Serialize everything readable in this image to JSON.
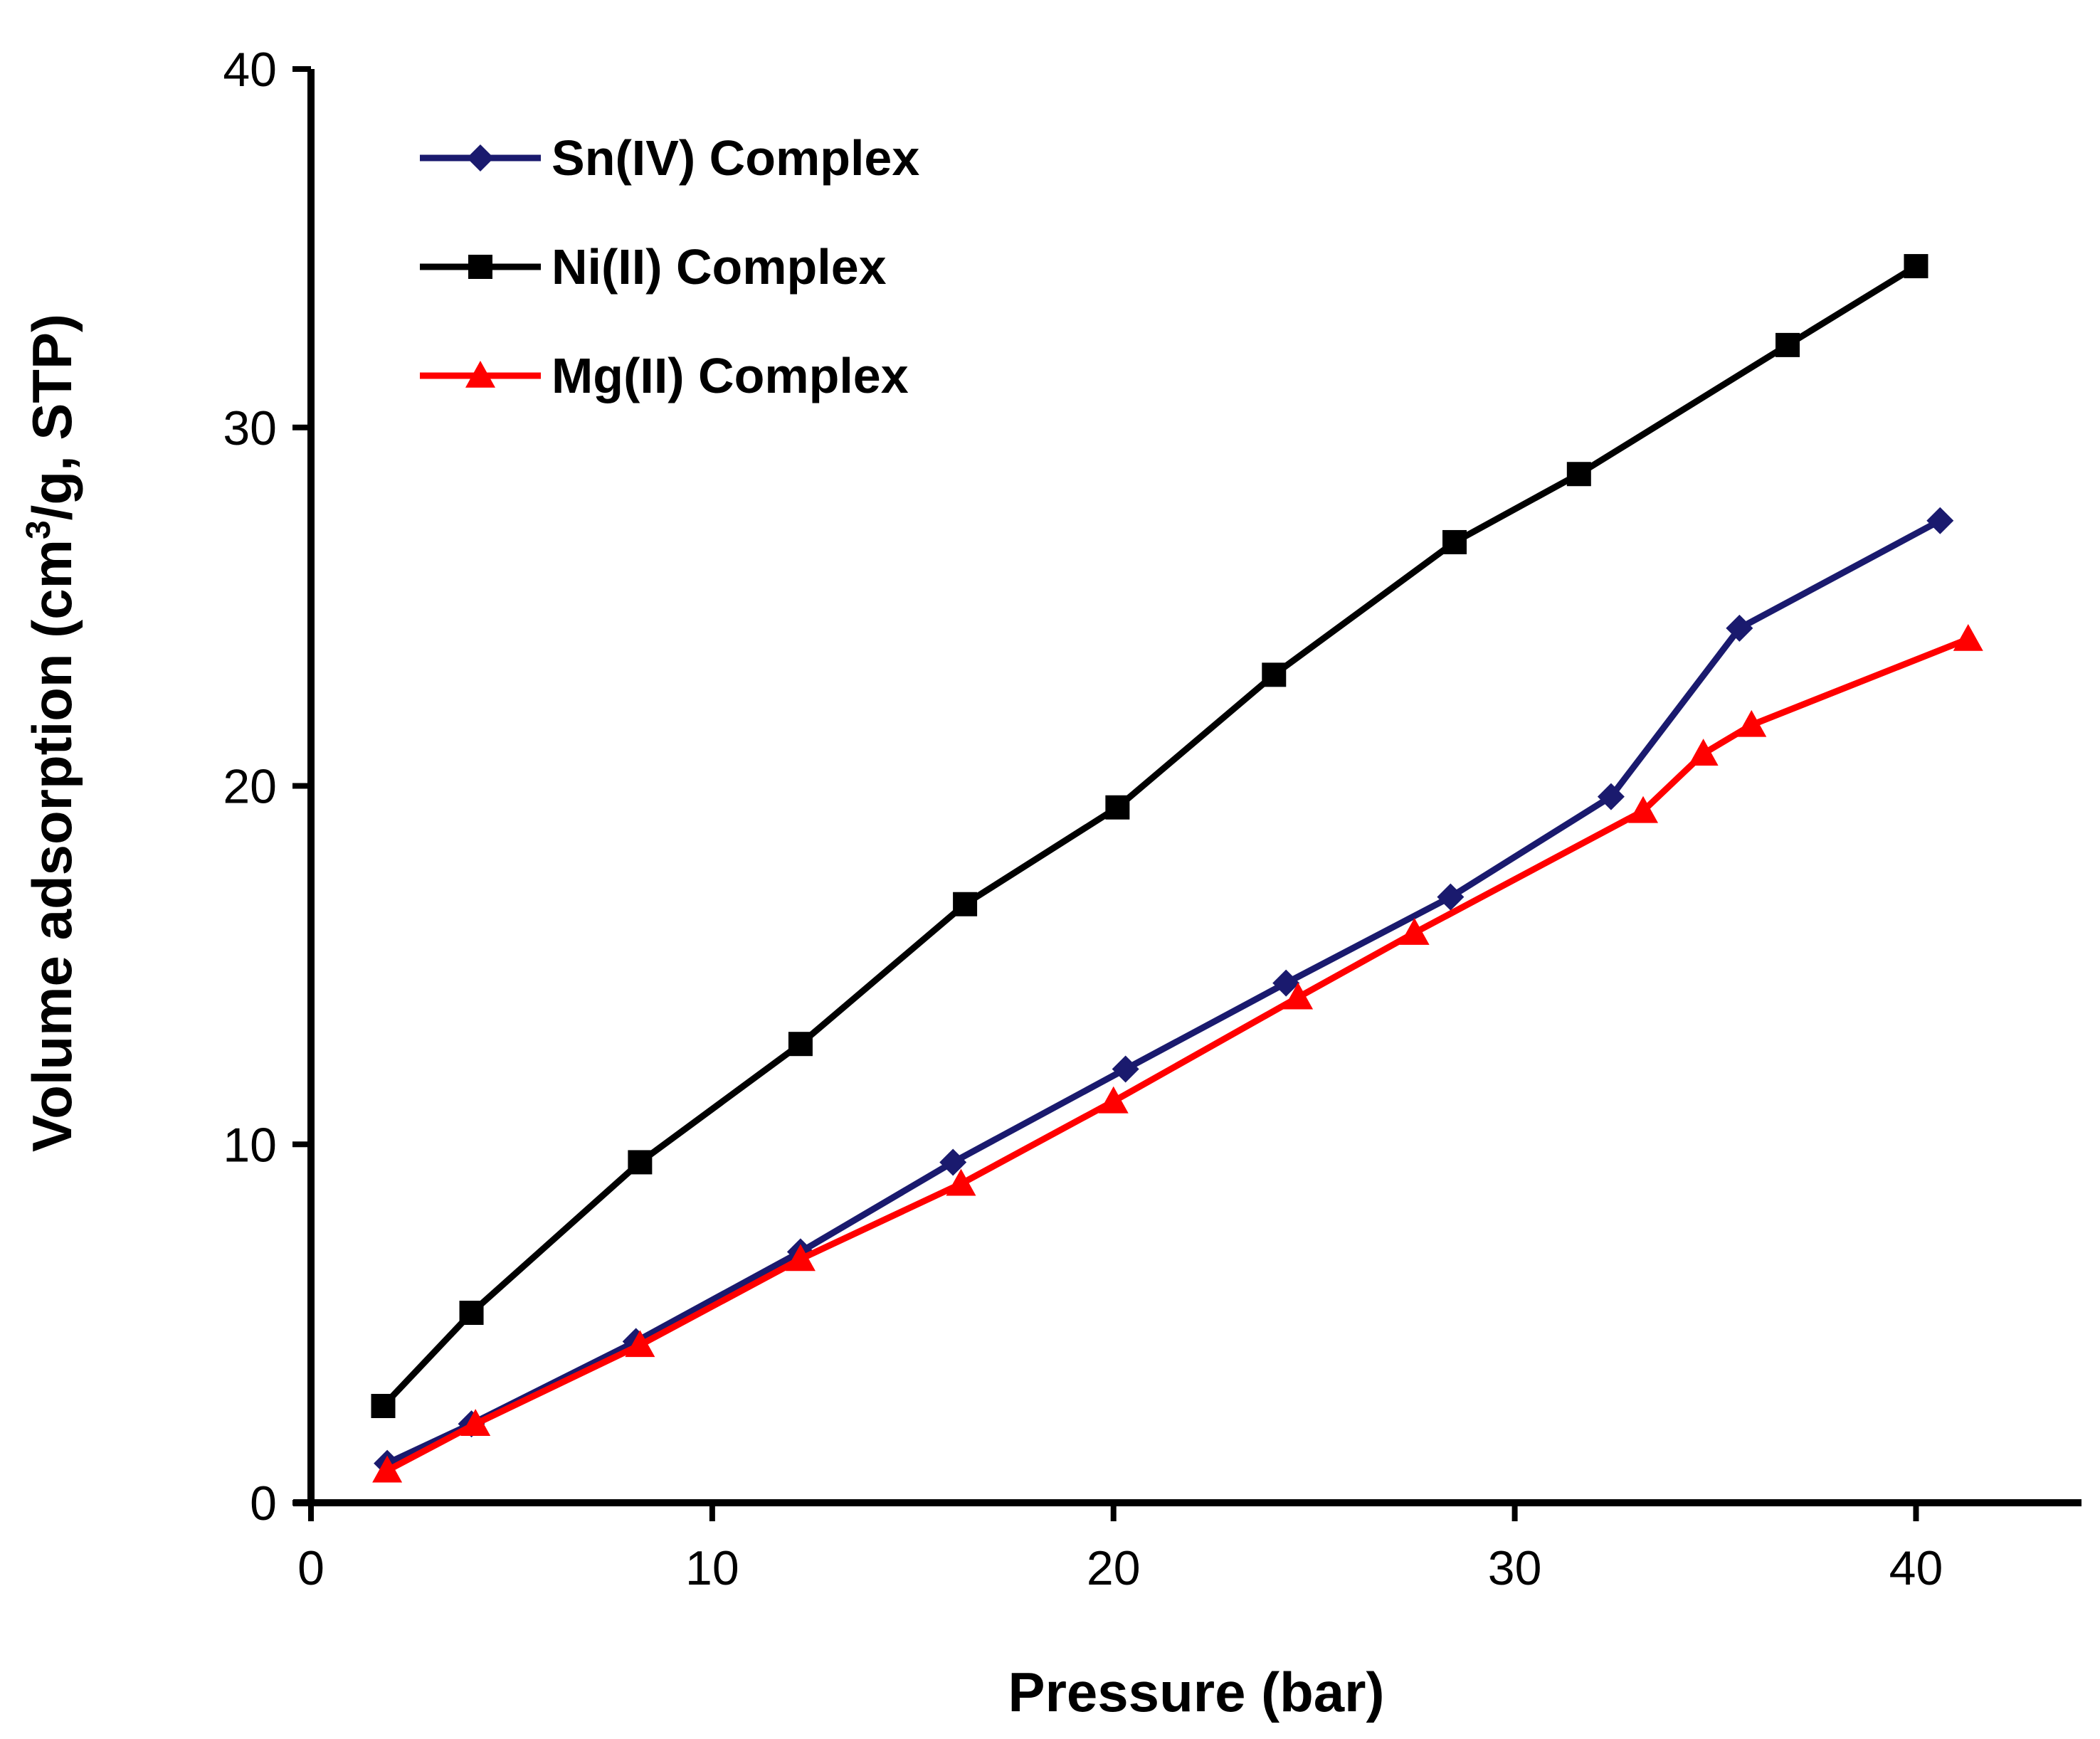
{
  "chart_data": {
    "type": "line",
    "title": "",
    "xlabel": "Pressure (bar)",
    "ylabel_parts": {
      "before": "Volume adsorption (cm",
      "superscript": "3",
      "after": "/g, STP)"
    },
    "xlim": [
      0,
      44
    ],
    "ylim": [
      0,
      40
    ],
    "xticks": [
      0,
      10,
      20,
      30,
      40
    ],
    "yticks": [
      0,
      10,
      20,
      30,
      40
    ],
    "grid": false,
    "legend_position": "top-left",
    "series": [
      {
        "name": "Sn(IV) Complex",
        "color": "#1a1a6e",
        "marker": "diamond",
        "points": [
          [
            1.9,
            1.1
          ],
          [
            4.0,
            2.2
          ],
          [
            8.1,
            4.5
          ],
          [
            12.2,
            7.0
          ],
          [
            16.0,
            9.5
          ],
          [
            20.3,
            12.1
          ],
          [
            24.3,
            14.5
          ],
          [
            28.4,
            16.9
          ],
          [
            32.4,
            19.7
          ],
          [
            35.6,
            24.4
          ],
          [
            40.6,
            27.4
          ]
        ]
      },
      {
        "name": "Ni(II) Complex",
        "color": "#000000",
        "marker": "square",
        "points": [
          [
            1.8,
            2.7
          ],
          [
            4.0,
            5.3
          ],
          [
            8.2,
            9.5
          ],
          [
            12.2,
            12.8
          ],
          [
            16.3,
            16.7
          ],
          [
            20.1,
            19.4
          ],
          [
            24.0,
            23.1
          ],
          [
            28.5,
            26.8
          ],
          [
            31.6,
            28.7
          ],
          [
            36.8,
            32.3
          ],
          [
            40.0,
            34.5
          ]
        ]
      },
      {
        "name": "Mg(II) Complex",
        "color": "#ff0000",
        "marker": "triangle",
        "points": [
          [
            1.9,
            0.9
          ],
          [
            4.1,
            2.2
          ],
          [
            8.2,
            4.4
          ],
          [
            12.2,
            6.8
          ],
          [
            16.2,
            8.9
          ],
          [
            20.0,
            11.2
          ],
          [
            24.6,
            14.1
          ],
          [
            27.5,
            15.9
          ],
          [
            33.2,
            19.3
          ],
          [
            34.7,
            20.9
          ],
          [
            35.9,
            21.7
          ],
          [
            41.3,
            24.1
          ]
        ]
      }
    ]
  }
}
